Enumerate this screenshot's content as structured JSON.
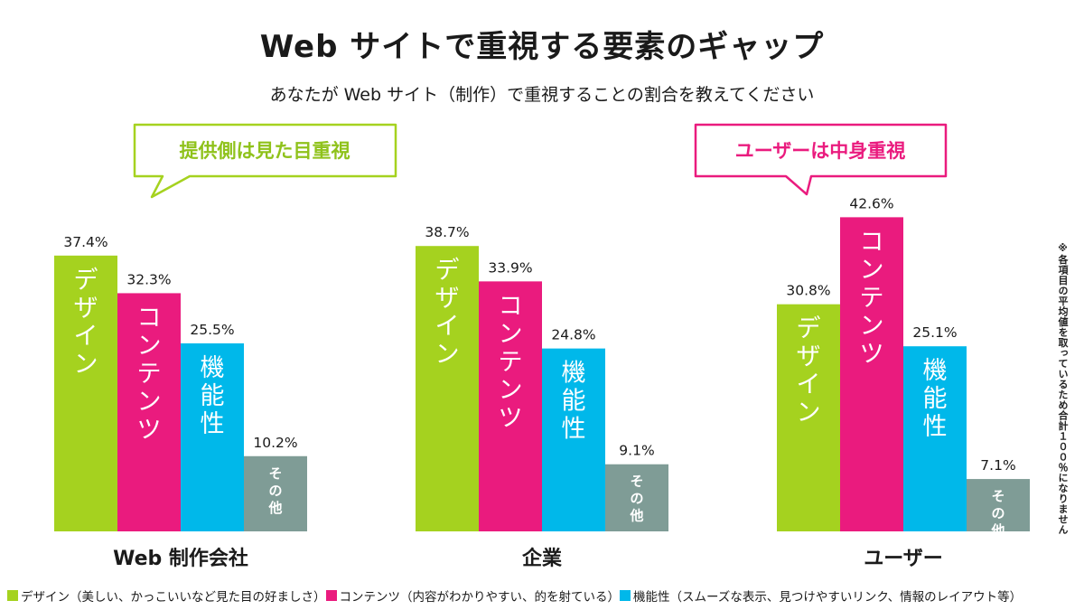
{
  "title": "Web サイトで重視する要素のギャップ",
  "subtitle": "あなたが Web サイト（制作）で重視することの割合を教えてください",
  "callouts": {
    "left": "提供側は見た目重視",
    "right": "ユーザーは中身重視"
  },
  "note": "※各項目の平均値を取っているため合計１００％になりません",
  "colors": {
    "design": "#a5d21f",
    "content": "#ea1b7e",
    "function": "#00b8ea",
    "other": "#7f9c96"
  },
  "legend": [
    {
      "key": "design",
      "label": "デザイン（美しい、かっこいいなど見た目の好ましさ）"
    },
    {
      "key": "content",
      "label": "コンテンツ（内容がわかりやすい、的を射ている）"
    },
    {
      "key": "function",
      "label": "機能性（スムーズな表示、見つけやすいリンク、情報のレイアウト等）"
    }
  ],
  "chart_data": {
    "type": "bar",
    "title": "Web サイトで重視する要素のギャップ",
    "unit": "%",
    "series_labels": [
      "デザイン",
      "コンテンツ",
      "機能性",
      "その他"
    ],
    "groups": [
      {
        "name": "Web 制作会社",
        "values": [
          37.4,
          32.3,
          25.5,
          10.2
        ],
        "labels": [
          "37.4%",
          "32.3%",
          "25.5%",
          "10.2%"
        ]
      },
      {
        "name": "企業",
        "values": [
          38.7,
          33.9,
          24.8,
          9.1
        ],
        "labels": [
          "38.7%",
          "33.9%",
          "24.8%",
          "9.1%"
        ]
      },
      {
        "name": "ユーザー",
        "values": [
          30.8,
          42.6,
          25.1,
          7.1
        ],
        "labels": [
          "30.8%",
          "42.6%",
          "25.1%",
          "7.1%"
        ]
      }
    ],
    "grid": false
  }
}
